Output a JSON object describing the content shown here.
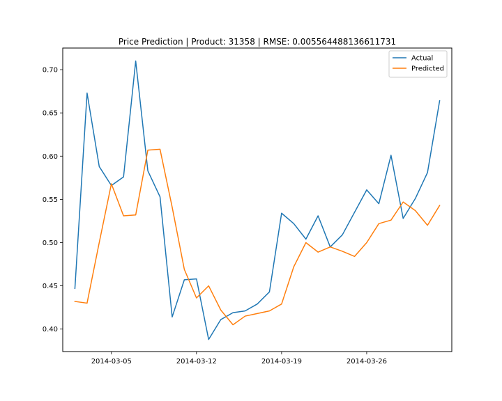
{
  "chart_data": {
    "type": "line",
    "title": "Price Prediction | Product: 31358 | RMSE: 0.005564488136611731",
    "xlabel": "",
    "ylabel": "",
    "x": [
      "2014-03-02",
      "2014-03-03",
      "2014-03-04",
      "2014-03-05",
      "2014-03-06",
      "2014-03-07",
      "2014-03-08",
      "2014-03-09",
      "2014-03-10",
      "2014-03-11",
      "2014-03-12",
      "2014-03-13",
      "2014-03-14",
      "2014-03-15",
      "2014-03-16",
      "2014-03-17",
      "2014-03-18",
      "2014-03-19",
      "2014-03-20",
      "2014-03-21",
      "2014-03-22",
      "2014-03-23",
      "2014-03-24",
      "2014-03-25",
      "2014-03-26",
      "2014-03-27",
      "2014-03-28",
      "2014-03-29",
      "2014-03-30",
      "2014-03-31",
      "2014-04-01"
    ],
    "x_tick_labels": [
      "2014-03-05",
      "2014-03-12",
      "2014-03-19",
      "2014-03-26"
    ],
    "x_tick_dates": [
      "2014-03-05",
      "2014-03-12",
      "2014-03-19",
      "2014-03-26"
    ],
    "xlim": [
      "2014-03-01",
      "2014-04-02"
    ],
    "ylim": [
      0.374,
      0.725
    ],
    "y_ticks": [
      0.4,
      0.45,
      0.5,
      0.55,
      0.6,
      0.65,
      0.7
    ],
    "y_tick_labels": [
      "0.40",
      "0.45",
      "0.50",
      "0.55",
      "0.60",
      "0.65",
      "0.70"
    ],
    "legend_position": "top-right",
    "grid": false,
    "series": [
      {
        "name": "Actual",
        "color": "#1f77b4",
        "values": [
          0.447,
          0.673,
          0.588,
          0.566,
          0.576,
          0.71,
          0.583,
          0.553,
          0.414,
          0.457,
          0.458,
          0.388,
          0.411,
          0.419,
          0.421,
          0.429,
          0.443,
          0.534,
          0.522,
          0.504,
          0.531,
          0.495,
          0.509,
          0.535,
          0.561,
          0.545,
          0.601,
          0.528,
          0.551,
          0.581,
          0.664
        ]
      },
      {
        "name": "Predicted",
        "color": "#ff7f0e",
        "values": [
          0.432,
          0.43,
          0.5,
          0.568,
          0.531,
          0.532,
          0.607,
          0.608,
          0.541,
          0.469,
          0.436,
          0.45,
          0.422,
          0.405,
          0.415,
          0.418,
          0.421,
          0.429,
          0.472,
          0.5,
          0.489,
          0.495,
          0.49,
          0.484,
          0.5,
          0.522,
          0.526,
          0.547,
          0.537,
          0.52,
          0.543
        ]
      }
    ]
  }
}
